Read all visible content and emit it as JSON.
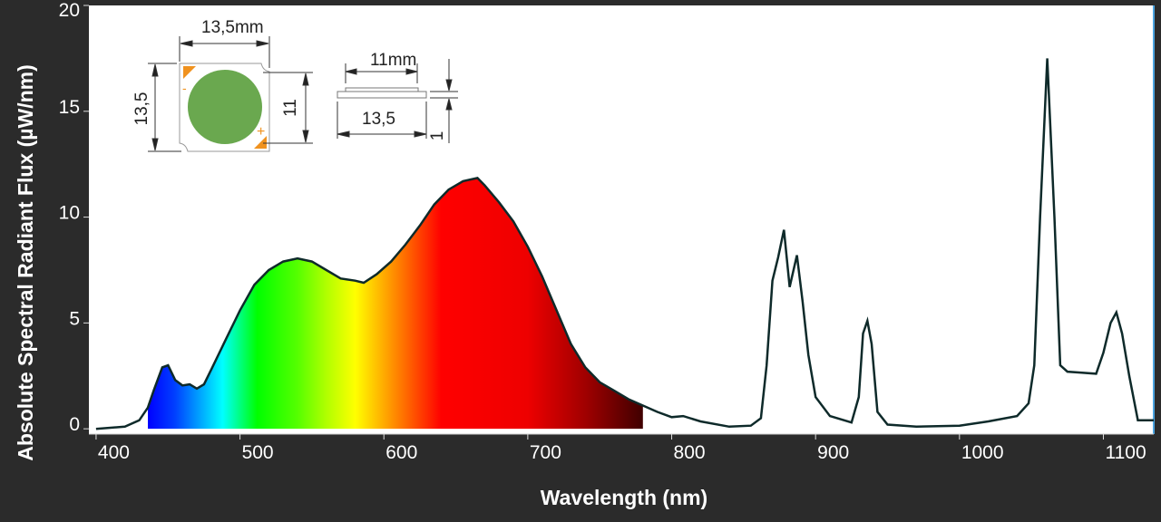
{
  "chart_data": {
    "type": "area",
    "title": "",
    "xlabel": "Wavelength (nm)",
    "ylabel": "Absolute Spectral Radiant Flux (µW/nm)",
    "xlim": [
      395,
      1135
    ],
    "ylim": [
      -0.25,
      20
    ],
    "xticks": [
      400,
      500,
      600,
      700,
      800,
      900,
      1000,
      1100
    ],
    "yticks": [
      0,
      5,
      10,
      15,
      20
    ],
    "grid": false,
    "legend": "none",
    "colored_fill_range_nm": [
      436,
      780
    ],
    "line_color": "#0e2a2a",
    "fill_colors": [
      {
        "nm": 436,
        "color": "#0000ff"
      },
      {
        "nm": 455,
        "color": "#0040ff"
      },
      {
        "nm": 488,
        "color": "#00ffff"
      },
      {
        "nm": 512,
        "color": "#00ff00"
      },
      {
        "nm": 540,
        "color": "#55ff00"
      },
      {
        "nm": 560,
        "color": "#b0ff00"
      },
      {
        "nm": 580,
        "color": "#ffff00"
      },
      {
        "nm": 610,
        "color": "#ff8000"
      },
      {
        "nm": 640,
        "color": "#ff0000"
      },
      {
        "nm": 700,
        "color": "#ee0000"
      },
      {
        "nm": 740,
        "color": "#a00000"
      },
      {
        "nm": 780,
        "color": "#400000"
      }
    ],
    "series": [
      {
        "x": [
          400,
          420,
          430,
          436,
          440,
          446,
          450,
          455,
          460,
          465,
          470,
          475,
          480,
          490,
          500,
          510,
          520,
          530,
          540,
          550,
          560,
          570,
          580,
          586,
          595,
          605,
          615,
          625,
          635,
          645,
          655,
          665,
          670,
          680,
          690,
          700,
          710,
          720,
          730,
          740,
          750,
          760,
          770,
          780,
          790,
          800,
          808,
          820,
          840,
          855,
          862,
          866,
          870,
          874,
          878,
          882,
          887,
          891,
          895,
          900,
          910,
          925,
          930,
          933,
          936,
          939,
          943,
          950,
          970,
          1000,
          1020,
          1040,
          1048,
          1052,
          1056,
          1061,
          1066,
          1070,
          1075,
          1085,
          1095,
          1100,
          1105,
          1109,
          1113,
          1118,
          1124,
          1135
        ],
        "y": [
          0,
          0.1,
          0.4,
          1.0,
          1.8,
          2.9,
          3.0,
          2.3,
          2.05,
          2.1,
          1.9,
          2.1,
          2.8,
          4.2,
          5.6,
          6.8,
          7.5,
          7.9,
          8.05,
          7.9,
          7.5,
          7.1,
          7.0,
          6.9,
          7.3,
          7.9,
          8.7,
          9.6,
          10.6,
          11.3,
          11.7,
          11.85,
          11.5,
          10.7,
          9.8,
          8.6,
          7.2,
          5.6,
          4.0,
          2.9,
          2.2,
          1.8,
          1.4,
          1.1,
          0.8,
          0.55,
          0.6,
          0.35,
          0.1,
          0.15,
          0.5,
          3.0,
          7.0,
          8.1,
          9.4,
          6.7,
          8.2,
          6.0,
          3.5,
          1.5,
          0.6,
          0.3,
          1.5,
          4.5,
          5.1,
          4.0,
          0.8,
          0.2,
          0.1,
          0.15,
          0.35,
          0.6,
          1.2,
          3.0,
          10.0,
          17.5,
          10.0,
          3.0,
          2.7,
          2.65,
          2.6,
          3.6,
          5.0,
          5.5,
          4.5,
          2.5,
          0.4,
          0.4
        ]
      }
    ]
  },
  "inset": {
    "top_width_label": "13,5mm",
    "left_height_label": "13,5",
    "right_height_label": "11",
    "side_top_label": "11mm",
    "side_bottom_label": "13,5",
    "side_thickness_label": "1",
    "minus_label": "-",
    "plus_label": "+",
    "die_color": "#6aa84f",
    "pad_color": "#f0921e"
  }
}
